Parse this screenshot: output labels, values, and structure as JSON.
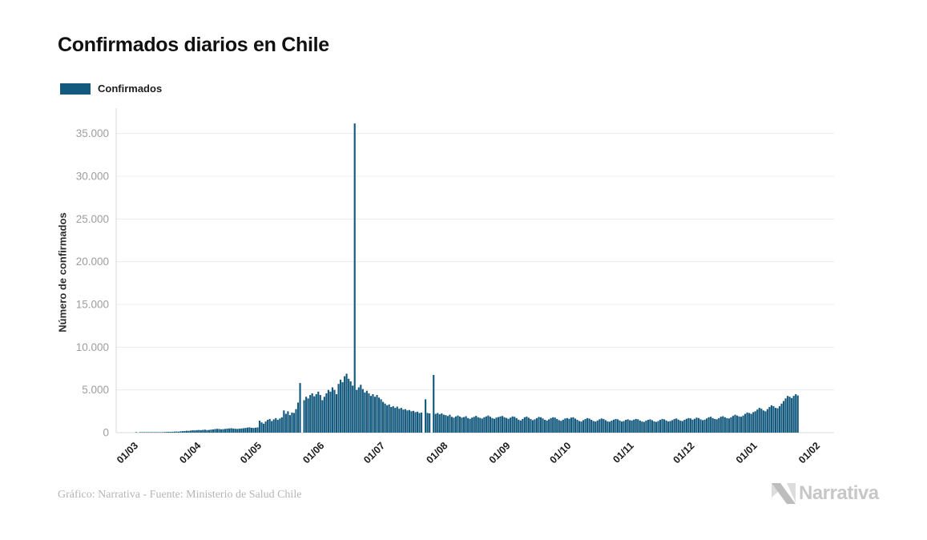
{
  "title": "Confirmados diarios en Chile",
  "legend": {
    "items": [
      {
        "label": "Confirmados",
        "color": "#14597E"
      }
    ]
  },
  "footer": {
    "credit": "Gráfico: Narrativa - Fuente: Ministerio de Salud Chile",
    "brand": "Narrativa"
  },
  "colors": {
    "bar": "#14597E",
    "grid": "#ececec",
    "axis": "#d9d9d9",
    "y_tick_text": "#9e9e9e",
    "x_tick_text": "#1b1b1b",
    "title_text": "#111111",
    "footer_text": "#b5b5b5",
    "logo_gray": "#c7c7c7",
    "logo_gray_light": "#dcdcdc"
  },
  "chart_data": {
    "type": "bar",
    "title": "Confirmados diarios en Chile",
    "xlabel": "",
    "ylabel": "Número de confirmados",
    "grid": "horizontal",
    "legend_position": "top-left",
    "ylim": [
      0,
      36500
    ],
    "y_ticks": [
      {
        "value": 0,
        "label": "0"
      },
      {
        "value": 5000,
        "label": "5.000"
      },
      {
        "value": 10000,
        "label": "10.000"
      },
      {
        "value": 15000,
        "label": "15.000"
      },
      {
        "value": 20000,
        "label": "20.000"
      },
      {
        "value": 25000,
        "label": "25.000"
      },
      {
        "value": 30000,
        "label": "30.000"
      },
      {
        "value": 35000,
        "label": "35.000"
      }
    ],
    "x_ticks": [
      {
        "label": "01/03",
        "day_offset": 0
      },
      {
        "label": "01/04",
        "day_offset": 31
      },
      {
        "label": "01/05",
        "day_offset": 61
      },
      {
        "label": "01/06",
        "day_offset": 92
      },
      {
        "label": "01/07",
        "day_offset": 122
      },
      {
        "label": "01/08",
        "day_offset": 153
      },
      {
        "label": "01/09",
        "day_offset": 184
      },
      {
        "label": "01/10",
        "day_offset": 214
      },
      {
        "label": "01/11",
        "day_offset": 245
      },
      {
        "label": "01/12",
        "day_offset": 275
      },
      {
        "label": "01/01",
        "day_offset": 306
      },
      {
        "label": "01/02",
        "day_offset": 337
      }
    ],
    "series": [
      {
        "name": "Confirmados",
        "start_label": "01/03",
        "peak_value": 36179,
        "values": [
          2,
          0,
          1,
          3,
          4,
          5,
          8,
          10,
          12,
          15,
          20,
          25,
          43,
          55,
          75,
          80,
          95,
          85,
          105,
          120,
          135,
          115,
          160,
          175,
          190,
          220,
          205,
          250,
          280,
          260,
          295,
          310,
          290,
          325,
          345,
          300,
          315,
          350,
          375,
          420,
          445,
          430,
          390,
          410,
          440,
          470,
          495,
          520,
          480,
          455,
          435,
          465,
          490,
          515,
          550,
          590,
          620,
          565,
          545,
          580,
          610,
          1400,
          1200,
          1050,
          1300,
          1500,
          1600,
          1350,
          1550,
          1700,
          1500,
          1650,
          1800,
          2600,
          2200,
          2500,
          2050,
          2350,
          2300,
          2750,
          3520,
          5800,
          0,
          3800,
          4200,
          4000,
          4400,
          4600,
          4250,
          4500,
          4800,
          4400,
          3800,
          4200,
          4600,
          5000,
          4800,
          5300,
          5000,
          4500,
          5700,
          6200,
          5900,
          6600,
          6900,
          6300,
          6000,
          5500,
          36179,
          5000,
          5300,
          5600,
          5100,
          4700,
          4900,
          4600,
          4300,
          4500,
          4200,
          4400,
          4100,
          3900,
          3600,
          3400,
          3200,
          3300,
          3000,
          3100,
          2900,
          3050,
          2800,
          2900,
          2700,
          2750,
          2600,
          2650,
          2500,
          2550,
          2400,
          2450,
          2300,
          2350,
          0,
          3900,
          2300,
          2250,
          0,
          6750,
          2200,
          2300,
          2150,
          2250,
          2100,
          2050,
          1950,
          2100,
          1850,
          1750,
          1900,
          2000,
          1880,
          1760,
          1820,
          1920,
          1700,
          1620,
          1760,
          1850,
          1960,
          1800,
          1720,
          1650,
          1800,
          1900,
          2000,
          1860,
          1700,
          1620,
          1760,
          1820,
          1900,
          1950,
          1800,
          1720,
          1620,
          1760,
          1900,
          1850,
          1700,
          1520,
          1420,
          1600,
          1800,
          1880,
          1740,
          1600,
          1460,
          1560,
          1700,
          1840,
          1800,
          1660,
          1500,
          1420,
          1560,
          1700,
          1800,
          1760,
          1600,
          1460,
          1380,
          1520,
          1660,
          1700,
          1620,
          1760,
          1800,
          1650,
          1500,
          1360,
          1300,
          1460,
          1600,
          1700,
          1640,
          1500,
          1360,
          1300,
          1420,
          1560,
          1660,
          1600,
          1460,
          1320,
          1280,
          1400,
          1520,
          1600,
          1560,
          1420,
          1300,
          1360,
          1500,
          1560,
          1460,
          1420,
          1520,
          1600,
          1560,
          1420,
          1300,
          1260,
          1400,
          1500,
          1560,
          1460,
          1320,
          1260,
          1360,
          1500,
          1600,
          1560,
          1420,
          1300,
          1360,
          1460,
          1600,
          1660,
          1520,
          1400,
          1360,
          1500,
          1620,
          1700,
          1660,
          1520,
          1620,
          1760,
          1700,
          1560,
          1460,
          1520,
          1660,
          1800,
          1860,
          1700,
          1600,
          1560,
          1700,
          1860,
          1920,
          1800,
          1700,
          1660,
          1800,
          1960,
          2100,
          2000,
          1900,
          1860,
          2000,
          2200,
          2360,
          2300,
          2200,
          2400,
          2500,
          2700,
          2900,
          2800,
          2600,
          2500,
          2750,
          3000,
          3200,
          3100,
          2900,
          2850,
          3100,
          3400,
          3700,
          4000,
          4300,
          4200,
          4050,
          4300,
          4500,
          4350
        ]
      }
    ]
  }
}
